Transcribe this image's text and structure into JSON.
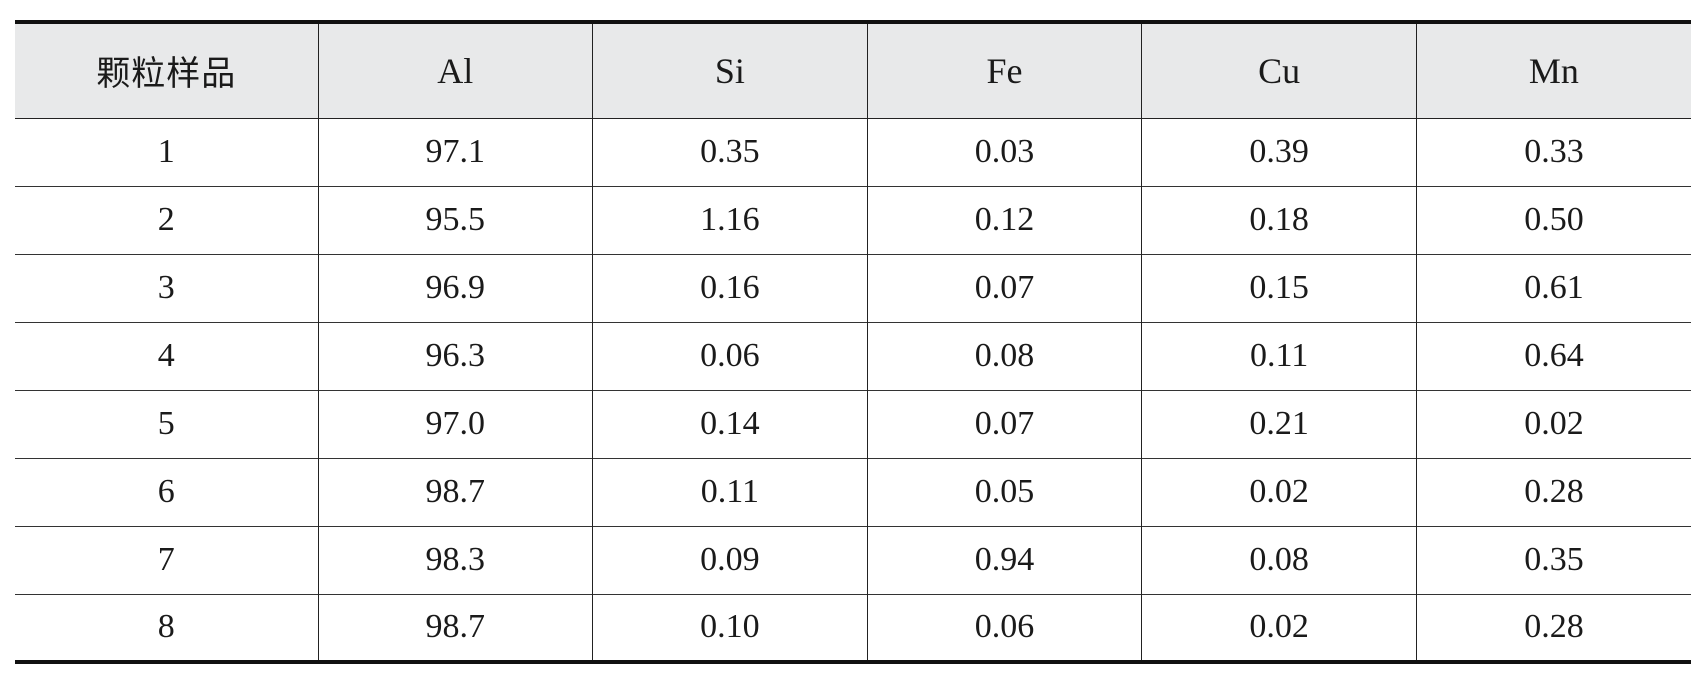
{
  "table": {
    "headers": [
      "颗粒样品",
      "Al",
      "Si",
      "Fe",
      "Cu",
      "Mn"
    ],
    "rows": [
      [
        "1",
        "97.1",
        "0.35",
        "0.03",
        "0.39",
        "0.33"
      ],
      [
        "2",
        "95.5",
        "1.16",
        "0.12",
        "0.18",
        "0.50"
      ],
      [
        "3",
        "96.9",
        "0.16",
        "0.07",
        "0.15",
        "0.61"
      ],
      [
        "4",
        "96.3",
        "0.06",
        "0.08",
        "0.11",
        "0.64"
      ],
      [
        "5",
        "97.0",
        "0.14",
        "0.07",
        "0.21",
        "0.02"
      ],
      [
        "6",
        "98.7",
        "0.11",
        "0.05",
        "0.02",
        "0.28"
      ],
      [
        "7",
        "98.3",
        "0.09",
        "0.94",
        "0.08",
        "0.35"
      ],
      [
        "8",
        "98.7",
        "0.10",
        "0.06",
        "0.02",
        "0.28"
      ]
    ]
  }
}
